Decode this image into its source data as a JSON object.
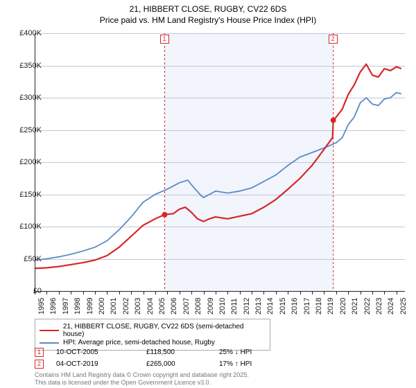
{
  "title_line1": "21, HIBBERT CLOSE, RUGBY, CV22 6DS",
  "title_line2": "Price paid vs. HM Land Registry's House Price Index (HPI)",
  "chart": {
    "type": "line",
    "background_plot_color": "#f2f5fc",
    "background_outside_color": "#ffffff",
    "grid_color": "#bfc6d6",
    "axis_color": "#222222",
    "x_min": 1995,
    "x_max": 2025.7,
    "y_min": 0,
    "y_max": 400,
    "y_unit": "£K",
    "y_ticks": [
      0,
      50,
      100,
      150,
      200,
      250,
      300,
      350,
      400
    ],
    "y_tick_labels": [
      "£0",
      "£50K",
      "£100K",
      "£150K",
      "£200K",
      "£250K",
      "£300K",
      "£350K",
      "£400K"
    ],
    "x_ticks": [
      1995,
      1996,
      1997,
      1998,
      1999,
      2000,
      2001,
      2002,
      2003,
      2004,
      2005,
      2006,
      2007,
      2008,
      2009,
      2010,
      2011,
      2012,
      2013,
      2014,
      2015,
      2016,
      2017,
      2018,
      2019,
      2020,
      2021,
      2022,
      2023,
      2024,
      2025
    ],
    "shaded_x_range": [
      2005.78,
      2019.76
    ],
    "series": [
      {
        "name_key": "series1_name",
        "color": "#d62728",
        "width": 2.2,
        "points": [
          [
            1995,
            35
          ],
          [
            1996,
            36
          ],
          [
            1997,
            38
          ],
          [
            1998,
            41
          ],
          [
            1999,
            44
          ],
          [
            2000,
            48
          ],
          [
            2001,
            55
          ],
          [
            2002,
            68
          ],
          [
            2003,
            85
          ],
          [
            2004,
            102
          ],
          [
            2005,
            112
          ],
          [
            2005.78,
            118.5
          ],
          [
            2006,
            119
          ],
          [
            2006.5,
            120
          ],
          [
            2007,
            127
          ],
          [
            2007.5,
            130
          ],
          [
            2008,
            122
          ],
          [
            2008.5,
            112
          ],
          [
            2009,
            108
          ],
          [
            2009.5,
            112
          ],
          [
            2010,
            115
          ],
          [
            2011,
            112
          ],
          [
            2012,
            116
          ],
          [
            2013,
            120
          ],
          [
            2014,
            130
          ],
          [
            2015,
            142
          ],
          [
            2016,
            158
          ],
          [
            2017,
            175
          ],
          [
            2018,
            195
          ],
          [
            2019,
            220
          ],
          [
            2019.7,
            238
          ],
          [
            2019.76,
            265
          ],
          [
            2020,
            270
          ],
          [
            2020.5,
            282
          ],
          [
            2021,
            305
          ],
          [
            2021.5,
            320
          ],
          [
            2022,
            340
          ],
          [
            2022.5,
            352
          ],
          [
            2023,
            335
          ],
          [
            2023.5,
            332
          ],
          [
            2024,
            345
          ],
          [
            2024.5,
            342
          ],
          [
            2025,
            348
          ],
          [
            2025.4,
            345
          ]
        ]
      },
      {
        "name_key": "series2_name",
        "color": "#5b8ac6",
        "width": 1.8,
        "points": [
          [
            1995,
            48
          ],
          [
            1996,
            50
          ],
          [
            1997,
            53
          ],
          [
            1998,
            57
          ],
          [
            1999,
            62
          ],
          [
            2000,
            68
          ],
          [
            2001,
            78
          ],
          [
            2002,
            95
          ],
          [
            2003,
            115
          ],
          [
            2004,
            138
          ],
          [
            2005,
            150
          ],
          [
            2006,
            158
          ],
          [
            2007,
            168
          ],
          [
            2007.7,
            172
          ],
          [
            2008,
            165
          ],
          [
            2008.8,
            148
          ],
          [
            2009,
            145
          ],
          [
            2010,
            155
          ],
          [
            2011,
            152
          ],
          [
            2012,
            155
          ],
          [
            2013,
            160
          ],
          [
            2014,
            170
          ],
          [
            2015,
            180
          ],
          [
            2016,
            195
          ],
          [
            2017,
            208
          ],
          [
            2018,
            215
          ],
          [
            2019,
            222
          ],
          [
            2020,
            230
          ],
          [
            2020.5,
            238
          ],
          [
            2021,
            258
          ],
          [
            2021.5,
            270
          ],
          [
            2022,
            292
          ],
          [
            2022.5,
            300
          ],
          [
            2023,
            290
          ],
          [
            2023.5,
            288
          ],
          [
            2024,
            298
          ],
          [
            2024.5,
            300
          ],
          [
            2025,
            308
          ],
          [
            2025.4,
            306
          ]
        ]
      }
    ],
    "sale_markers": [
      {
        "label": "1",
        "x": 2005.78,
        "y": 118.5,
        "color": "#d62728"
      },
      {
        "label": "2",
        "x": 2019.76,
        "y": 265,
        "color": "#d62728"
      }
    ]
  },
  "legend": {
    "series1_name": "21, HIBBERT CLOSE, RUGBY, CV22 6DS (semi-detached house)",
    "series2_name": "HPI: Average price, semi-detached house, Rugby",
    "series1_color": "#d62728",
    "series2_color": "#5b8ac6"
  },
  "transactions": [
    {
      "label": "1",
      "date": "10-OCT-2005",
      "price": "£118,500",
      "delta": "25% ↓ HPI",
      "color": "#d62728"
    },
    {
      "label": "2",
      "date": "04-OCT-2019",
      "price": "£265,000",
      "delta": "17% ↑ HPI",
      "color": "#d62728"
    }
  ],
  "footer_line1": "Contains HM Land Registry data © Crown copyright and database right 2025.",
  "footer_line2": "This data is licensed under the Open Government Licence v3.0."
}
